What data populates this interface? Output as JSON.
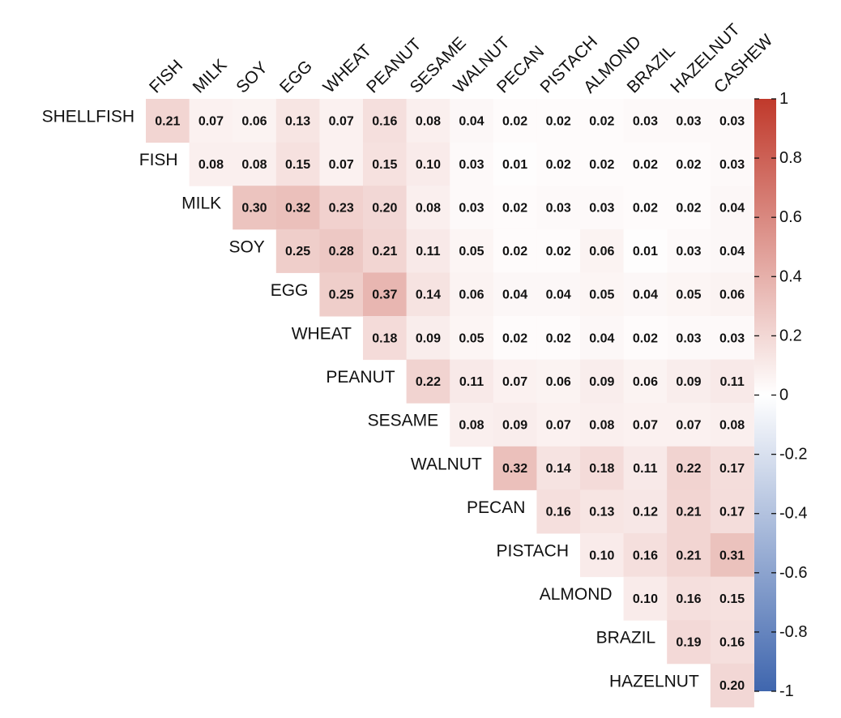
{
  "chart_data": {
    "type": "heatmap",
    "layout": "upper-triangle",
    "rows": [
      "SHELLFISH",
      "FISH",
      "MILK",
      "SOY",
      "EGG",
      "WHEAT",
      "PEANUT",
      "SESAME",
      "WALNUT",
      "PECAN",
      "PISTACH",
      "ALMOND",
      "BRAZIL",
      "HAZELNUT"
    ],
    "columns": [
      "FISH",
      "MILK",
      "SOY",
      "EGG",
      "WHEAT",
      "PEANUT",
      "SESAME",
      "WALNUT",
      "PECAN",
      "PISTACH",
      "ALMOND",
      "BRAZIL",
      "HAZELNUT",
      "CASHEW"
    ],
    "values": [
      [
        0.21,
        0.07,
        0.06,
        0.13,
        0.07,
        0.16,
        0.08,
        0.04,
        0.02,
        0.02,
        0.02,
        0.03,
        0.03,
        0.03
      ],
      [
        0.08,
        0.08,
        0.15,
        0.07,
        0.15,
        0.1,
        0.03,
        0.01,
        0.02,
        0.02,
        0.02,
        0.02,
        0.03
      ],
      [
        0.3,
        0.32,
        0.23,
        0.2,
        0.08,
        0.03,
        0.02,
        0.03,
        0.03,
        0.02,
        0.02,
        0.04
      ],
      [
        0.25,
        0.28,
        0.21,
        0.11,
        0.05,
        0.02,
        0.02,
        0.06,
        0.01,
        0.03,
        0.04
      ],
      [
        0.25,
        0.37,
        0.14,
        0.06,
        0.04,
        0.04,
        0.05,
        0.04,
        0.05,
        0.06
      ],
      [
        0.18,
        0.09,
        0.05,
        0.02,
        0.02,
        0.04,
        0.02,
        0.03,
        0.03
      ],
      [
        0.22,
        0.11,
        0.07,
        0.06,
        0.09,
        0.06,
        0.09,
        0.11
      ],
      [
        0.08,
        0.09,
        0.07,
        0.08,
        0.07,
        0.07,
        0.08
      ],
      [
        0.32,
        0.14,
        0.18,
        0.11,
        0.22,
        0.17
      ],
      [
        0.16,
        0.13,
        0.12,
        0.21,
        0.17
      ],
      [
        0.1,
        0.16,
        0.21,
        0.31
      ],
      [
        0.1,
        0.16,
        0.15
      ],
      [
        0.19,
        0.16
      ],
      [
        0.2
      ]
    ],
    "colorbar": {
      "min": -1,
      "max": 1,
      "ticks": [
        1,
        0.8,
        0.6,
        0.4,
        0.2,
        0,
        -0.2,
        -0.4,
        -0.6,
        -0.8,
        -1
      ],
      "tick_labels": [
        "1",
        "0.8",
        "0.6",
        "0.4",
        "0.2",
        "0",
        "-0.2",
        "-0.4",
        "-0.6",
        "-0.8",
        "-1"
      ],
      "colors": {
        "low": "#3F66AE",
        "mid": "#FFFFFF",
        "high": "#C0392B"
      }
    },
    "title": "",
    "xlabel": "",
    "ylabel": ""
  }
}
